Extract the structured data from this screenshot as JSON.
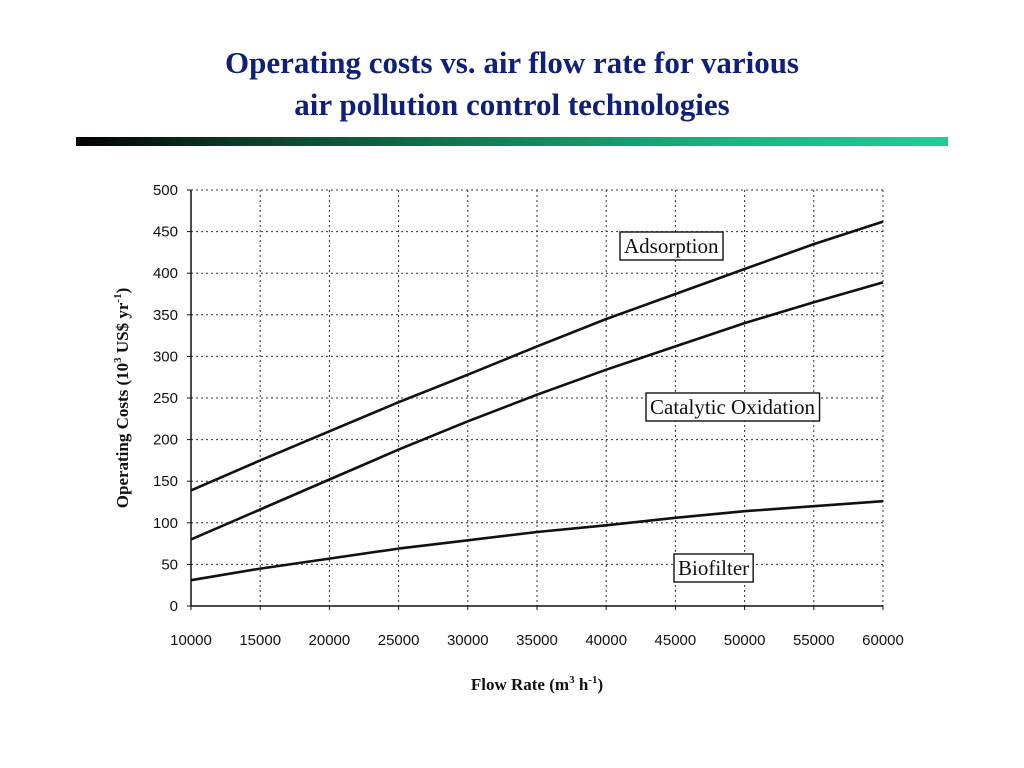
{
  "slide": {
    "title_line1": "Operating costs vs. air flow rate for various",
    "title_line2": "air pollution control technologies",
    "title_color": "#0f1f7a"
  },
  "chart_data": {
    "type": "line",
    "title": "",
    "xlabel": "Flow Rate (m3 h-1)",
    "ylabel": "Operating Costs (103 US$ yr-1)",
    "xlim": [
      10000,
      60000
    ],
    "ylim": [
      0,
      500
    ],
    "x_ticks": [
      10000,
      15000,
      20000,
      25000,
      30000,
      35000,
      40000,
      45000,
      50000,
      55000,
      60000
    ],
    "y_ticks": [
      0,
      50,
      100,
      150,
      200,
      250,
      300,
      350,
      400,
      450,
      500
    ],
    "grid": true,
    "x": [
      10000,
      15000,
      20000,
      25000,
      30000,
      35000,
      40000,
      45000,
      50000,
      55000,
      60000
    ],
    "series": [
      {
        "name": "Adsorption",
        "values": [
          139,
          175,
          210,
          245,
          278,
          312,
          345,
          375,
          405,
          435,
          462
        ]
      },
      {
        "name": "Catalytic Oxidation",
        "values": [
          80,
          116,
          152,
          188,
          222,
          254,
          284,
          312,
          340,
          365,
          389
        ]
      },
      {
        "name": "Biofilter",
        "values": [
          31,
          45,
          57,
          69,
          79,
          89,
          97,
          106,
          114,
          120,
          126
        ]
      }
    ]
  }
}
